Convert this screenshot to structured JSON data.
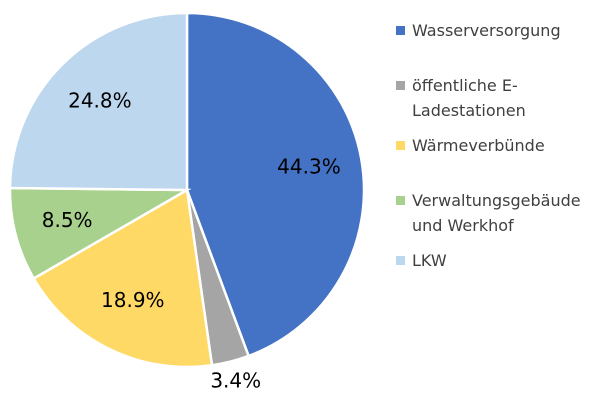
{
  "chart_data": {
    "type": "pie",
    "categories": [
      "Wasserversorgung",
      "öffentliche E-Ladestationen",
      "Wärmeverbünde",
      "Verwaltungsgebäude und Werkhof",
      "LKW"
    ],
    "values": [
      44.3,
      3.4,
      18.9,
      8.5,
      24.8
    ],
    "value_labels": [
      "44.3%",
      "3.4%",
      "18.9%",
      "8.5%",
      "24.8%"
    ],
    "colors": [
      "#4472c4",
      "#a5a5a5",
      "#ffd966",
      "#a9d18e",
      "#bdd7ee"
    ],
    "legend": "right"
  }
}
